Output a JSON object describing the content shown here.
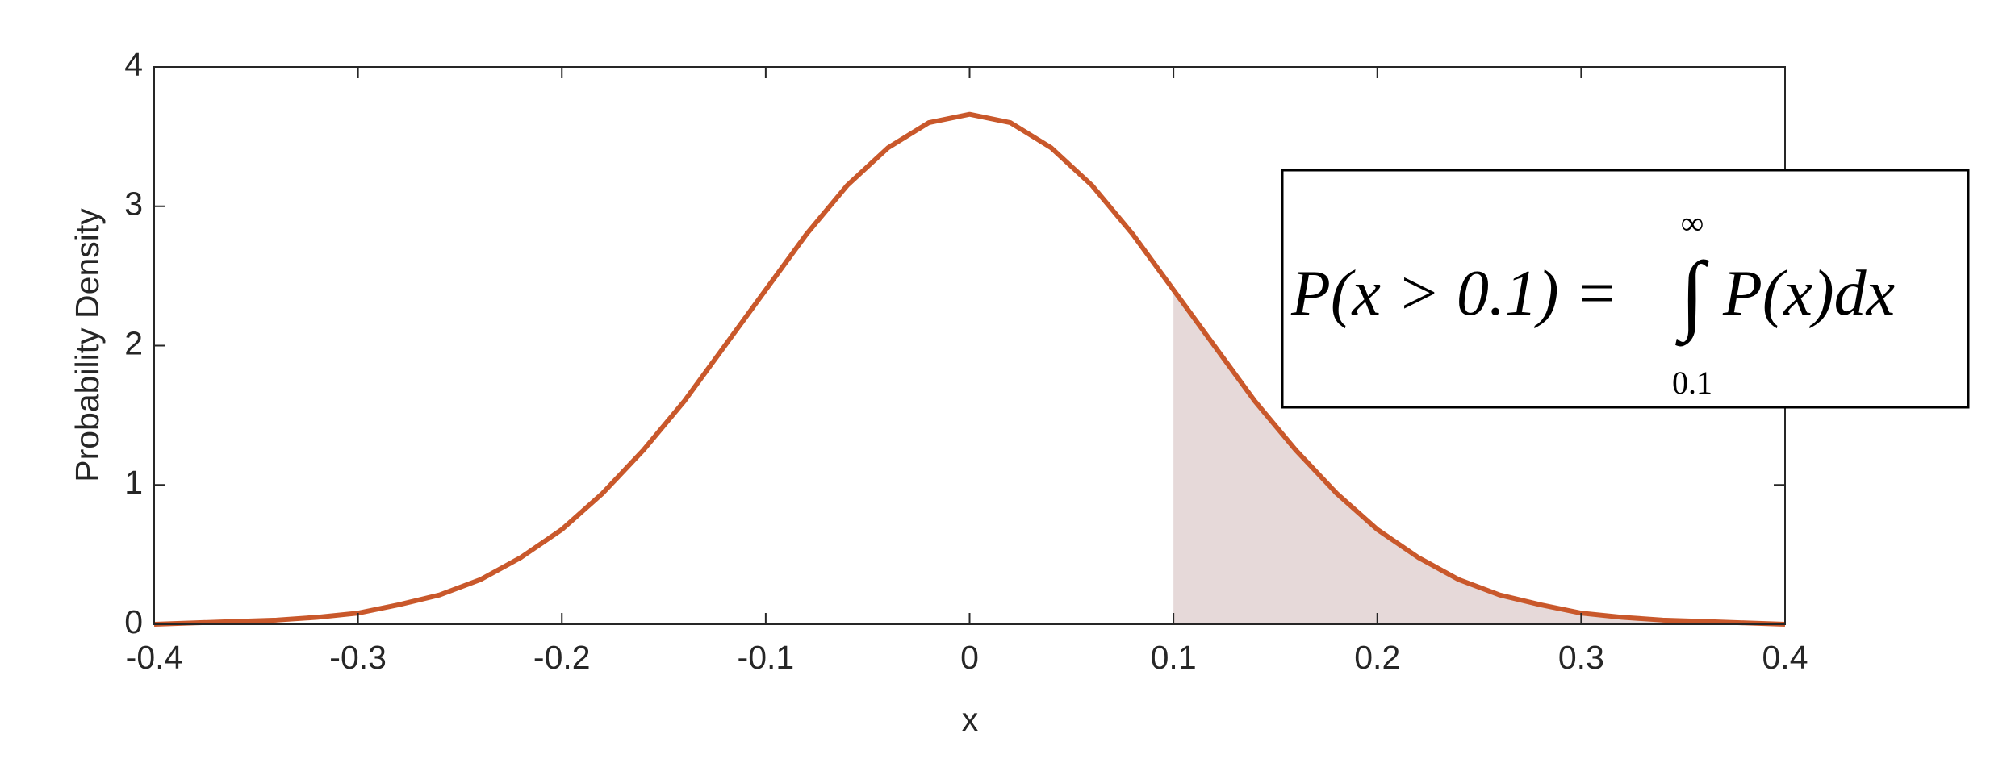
{
  "chart_data": {
    "type": "line",
    "xlabel": "x",
    "ylabel": "Probability Density",
    "xlim": [
      -0.4,
      0.4
    ],
    "xticks": [
      -0.4,
      -0.3,
      -0.2,
      -0.1,
      0,
      0.1,
      0.2,
      0.3,
      0.4
    ],
    "ylim": [
      0,
      4
    ],
    "yticks": [
      0,
      1,
      2,
      3,
      4
    ],
    "grid": false,
    "series": [
      {
        "type": "area",
        "color": "#e6d9d9",
        "x": [
          0.1,
          0.12,
          0.14,
          0.16,
          0.18,
          0.2,
          0.22,
          0.24,
          0.26,
          0.28,
          0.3,
          0.32,
          0.34,
          0.36,
          0.38,
          0.4
        ],
        "values": [
          2.4,
          2.0,
          1.6,
          1.25,
          0.94,
          0.68,
          0.48,
          0.32,
          0.21,
          0.14,
          0.08,
          0.05,
          0.03,
          0.02,
          0.01,
          0.0
        ]
      },
      {
        "type": "line",
        "color": "#c9582b",
        "x": [
          -0.4,
          -0.38,
          -0.36,
          -0.34,
          -0.32,
          -0.3,
          -0.28,
          -0.26,
          -0.24,
          -0.22,
          -0.2,
          -0.18,
          -0.16,
          -0.14,
          -0.12,
          -0.1,
          -0.08,
          -0.06,
          -0.04,
          -0.02,
          0,
          0.02,
          0.04,
          0.06,
          0.08,
          0.1,
          0.12,
          0.14,
          0.16,
          0.18,
          0.2,
          0.22,
          0.24,
          0.26,
          0.28,
          0.3,
          0.32,
          0.34,
          0.36,
          0.38,
          0.4
        ],
        "values": [
          0.0,
          0.01,
          0.02,
          0.03,
          0.05,
          0.08,
          0.14,
          0.21,
          0.32,
          0.48,
          0.68,
          0.94,
          1.25,
          1.6,
          2.0,
          2.4,
          2.8,
          3.15,
          3.42,
          3.6,
          3.66,
          3.6,
          3.42,
          3.15,
          2.8,
          2.4,
          2.0,
          1.6,
          1.25,
          0.94,
          0.68,
          0.48,
          0.32,
          0.21,
          0.14,
          0.08,
          0.05,
          0.03,
          0.02,
          0.01,
          0.0
        ]
      }
    ],
    "annotation": {
      "left": "P(x > 0.1) =",
      "integral": "∫",
      "upper": "∞",
      "lower": "0.1",
      "right": "P(x)dx"
    }
  }
}
